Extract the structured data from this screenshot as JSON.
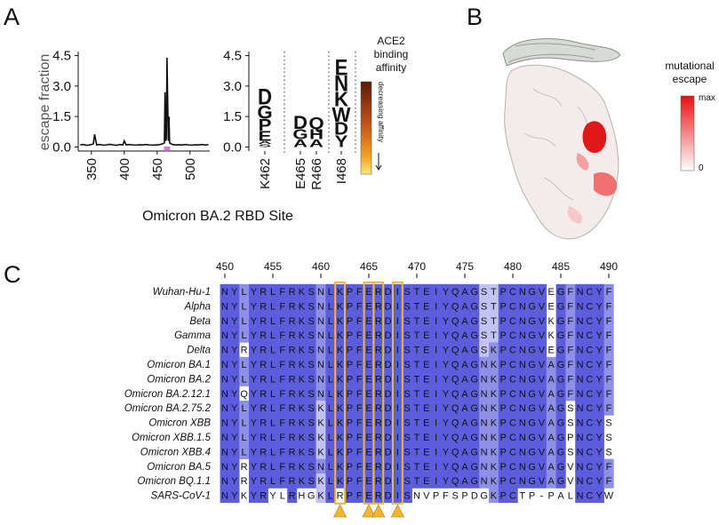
{
  "panels": {
    "a": "A",
    "b": "B",
    "c": "C"
  },
  "chart_data": [
    {
      "type": "line",
      "ylabel": "escape fraction",
      "xlabel": "Omicron BA.2 RBD Site",
      "color": "#111111",
      "xlim": [
        330,
        530
      ],
      "ylim": [
        -0.2,
        4.7
      ],
      "xticks": [
        350,
        400,
        450,
        500
      ],
      "yticks": [
        {
          "value": 0,
          "label": "0.0"
        },
        {
          "value": 1.5,
          "label": "1.5"
        },
        {
          "value": 3,
          "label": "3.0"
        },
        {
          "value": 4.5,
          "label": "4.5"
        }
      ],
      "x": [
        333,
        338,
        343,
        348,
        353,
        355,
        358,
        363,
        368,
        373,
        378,
        383,
        388,
        393,
        398,
        400,
        403,
        408,
        413,
        418,
        423,
        428,
        433,
        438,
        443,
        448,
        453,
        458,
        461,
        462,
        463,
        464,
        465,
        466,
        467,
        468,
        469,
        473,
        478,
        483,
        488,
        493,
        498,
        503,
        508,
        513,
        518,
        523,
        528
      ],
      "values": [
        0.1,
        0.12,
        0.08,
        0.1,
        0.15,
        0.62,
        0.1,
        0.12,
        0.09,
        0.1,
        0.13,
        0.1,
        0.08,
        0.12,
        0.1,
        0.3,
        0.1,
        0.12,
        0.1,
        0.09,
        0.11,
        0.1,
        0.12,
        0.1,
        0.09,
        0.1,
        0.11,
        0.15,
        0.2,
        2.7,
        0.3,
        0.4,
        4.4,
        2.4,
        0.3,
        1.5,
        0.2,
        0.12,
        0.1,
        0.11,
        0.1,
        0.12,
        0.1,
        0.09,
        0.11,
        0.1,
        0.12,
        0.1,
        0.11
      ]
    },
    {
      "type": "logo",
      "ylim": [
        -0.2,
        4.7
      ],
      "yticks": [
        {
          "value": 0,
          "label": "0.0"
        },
        {
          "value": 1.5,
          "label": "1.5"
        },
        {
          "value": 3,
          "label": "3.0"
        },
        {
          "value": 4.5,
          "label": "4.5"
        }
      ],
      "colorbar_title": [
        "ACE2",
        "binding",
        "affinity"
      ],
      "colorbar_note": "decreasing affinity",
      "sites": [
        {
          "label": "K462",
          "letters": [
            "S",
            "A",
            "E",
            "P",
            "G",
            "D"
          ],
          "values": [
            0.15,
            0.15,
            0.5,
            0.6,
            0.7,
            0.8
          ],
          "colors": [
            "#e8a070",
            "#d98050",
            "#c8602e",
            "#b04a22",
            "#a03a1a",
            "#8b2a10"
          ]
        },
        {
          "label": "E465",
          "letters": [
            "A",
            "G",
            "D"
          ],
          "values": [
            0.4,
            0.5,
            0.7
          ],
          "colors": [
            "#e09060",
            "#c05a28",
            "#a0401a"
          ]
        },
        {
          "label": "R466",
          "letters": [
            "A",
            "H",
            "Q"
          ],
          "values": [
            0.4,
            0.5,
            0.6
          ],
          "colors": [
            "#e09060",
            "#c05a28",
            "#a0401a"
          ]
        },
        {
          "label": "I468",
          "letters": [
            "Y",
            "D",
            "W",
            "K",
            "N",
            "E"
          ],
          "values": [
            0.6,
            0.65,
            0.75,
            0.75,
            0.8,
            0.8
          ],
          "colors": [
            "#c8602e",
            "#b04a22",
            "#a03a1a",
            "#8b2a10",
            "#7a2208",
            "#6a1c06"
          ]
        }
      ]
    }
  ],
  "structure": {
    "colorbar_title": [
      "mutational",
      "escape"
    ],
    "max_label": "max",
    "min_label": "0"
  },
  "alignment": {
    "position_ticks": [
      450,
      455,
      460,
      465,
      470,
      475,
      480,
      485,
      490
    ],
    "highlight_positions": [
      462,
      465,
      466,
      468
    ],
    "highlight_color": "#f2b632",
    "rows": [
      {
        "name": "Wuhan-Hu-1",
        "sequence": "NYLYRLFRKSNLKPFERDISTEIYQAGSTPCNGVEGFNCYF"
      },
      {
        "name": "Alpha",
        "sequence": "NYLYRLFRKSNLKPFERDISTEIYQAGSTPCNGVEGFNCYF"
      },
      {
        "name": "Beta",
        "sequence": "NYLYRLFRKSNLKPFERDISTEIYQAGSTPCNGVKGFNCYF"
      },
      {
        "name": "Gamma",
        "sequence": "NYLYRLFRKSNLKPFERDISTEIYQAGSTPCNGVKGFNCYF"
      },
      {
        "name": "Delta",
        "sequence": "NYRYRLFRKSNLKPFERDISTEIYQAGSKPCNGVEGFNCYF"
      },
      {
        "name": "Omicron BA.1",
        "sequence": "NYLYRLFRKSNLKPFERDISTEIYQAGNKPCNGVAGFNCYF"
      },
      {
        "name": "Omicron BA.2",
        "sequence": "NYLYRLFRKSNLKPFERDISTEIYQAGNKPCNGVAGFNCYF"
      },
      {
        "name": "Omicron BA.2.12.1",
        "sequence": "NYQYRLFRKSNLKPFERDISTEIYQAGNKPCNGVAGFNCYF"
      },
      {
        "name": "Omicron BA.2.75.2",
        "sequence": "NYLYRLFRKSKLKPFERDISTEIYQAGNKPCNGVAGSNCYF"
      },
      {
        "name": "Omicron XBB",
        "sequence": "NYLYRLFRKSKLKPFERDISTEIYQAGNKPCNGVAGSNCYS"
      },
      {
        "name": "Omicron XBB.1.5",
        "sequence": "NYLYRLFRKSKLKPFERDISTEIYQAGNKPCNGVAGPNCYS"
      },
      {
        "name": "Omicron XBB.4",
        "sequence": "NYLYRLFRKSKLKPFERDISTEIYQAGNKPCNGVAGSNCYS"
      },
      {
        "name": "Omicron BA.5",
        "sequence": "NYRYRLFRKSNLKPFERDISTEIYQAGNKPCNGVAGVNCYF"
      },
      {
        "name": "Omicron BQ.1.1",
        "sequence": "NYRYRLFRKSKLKPFERDISTEIYQAGNKPCNGVAGVNCYF"
      },
      {
        "name": "SARS-CoV-1",
        "sequence": "NYKYRYLRHGKLRPFERDISNVPFSPDGKPCTP-PALNCYW"
      }
    ]
  }
}
